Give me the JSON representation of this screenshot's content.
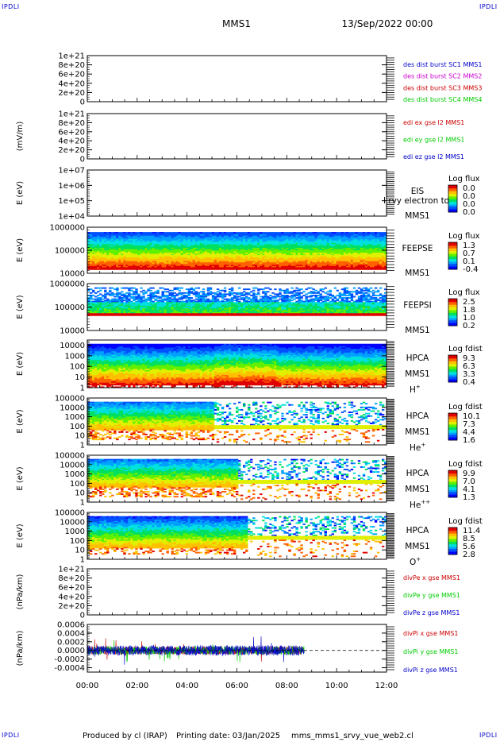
{
  "header": {
    "corner_label": "IPDLI",
    "spacecraft": "MMS1",
    "datetime": "13/Sep/2022 00:00"
  },
  "footer": {
    "produced_by": "Produced by cl (IRAP)",
    "printing_date": "Printing date: 03/Jan/2025",
    "filename": "mms_mms1_srvy_vue_web2.cl"
  },
  "colors": {
    "red": "#cc0000",
    "green": "#00cc00",
    "blue": "#0000cc",
    "magenta": "#cc00cc",
    "spectrum": [
      "#0000ff",
      "#0050ff",
      "#00a0ff",
      "#00e0e0",
      "#00e060",
      "#60f000",
      "#e0f000",
      "#ffc000",
      "#ff6000",
      "#e00000"
    ]
  },
  "chart_data": [
    {
      "type": "line",
      "id": "des-dist",
      "ylabel": "",
      "ytick_labels": [
        "0",
        "2e+20",
        "4e+20",
        "6e+20",
        "8e+20",
        "1e+21"
      ],
      "ylim": [
        0,
        1e+21
      ],
      "series": [
        {
          "name": "des dist burst SC1 MMS1",
          "color": "#0000cc",
          "values": []
        },
        {
          "name": "des dist burst SC2 MMS2",
          "color": "#cc00cc",
          "values": []
        },
        {
          "name": "des dist burst SC3 MMS3",
          "color": "#cc0000",
          "values": []
        },
        {
          "name": "des dist burst SC4 MMS4",
          "color": "#00cc00",
          "values": []
        }
      ],
      "zero_line": true
    },
    {
      "type": "line",
      "id": "edi",
      "ylabel": "(mV/m)",
      "ytick_labels": [
        "0",
        "2e+20",
        "4e+20",
        "6e+20",
        "8e+20",
        "1e+21"
      ],
      "ylim": [
        0,
        1e+21
      ],
      "series": [
        {
          "name": "edi ex gse l2 MMS1",
          "color": "#cc0000",
          "values": []
        },
        {
          "name": "edi ey gse l2 MMS1",
          "color": "#00cc00",
          "values": []
        },
        {
          "name": "edi ez gse l2 MMS1",
          "color": "#0000cc",
          "values": []
        }
      ],
      "zero_line": true
    },
    {
      "type": "heatmap",
      "id": "eis",
      "ylabel": "E (eV)",
      "scale": "log",
      "ytick_labels": [
        "1e+04",
        "1e+05",
        "1e+06",
        "1e+07"
      ],
      "ylim": [
        10000,
        10000000
      ],
      "instrument": "EIS",
      "spacecraft": "MMS1",
      "overlay_text": "l rvy electron to",
      "colorbar": {
        "title": "Log flux",
        "ticks": [
          "0.0",
          "0.0",
          "0.0",
          "0.0"
        ]
      },
      "fill": "empty"
    },
    {
      "type": "heatmap",
      "id": "feepse",
      "ylabel": "E (eV)",
      "scale": "log",
      "ytick_labels": [
        "10000",
        "100000",
        "1000000"
      ],
      "ylim": [
        10000,
        1000000
      ],
      "instrument": "FEEPSE",
      "spacecraft": "MMS1",
      "colorbar": {
        "title": "Log flux",
        "ticks": [
          "1.3",
          "0.7",
          "0.1",
          "-0.4"
        ]
      },
      "fill": "feepse"
    },
    {
      "type": "heatmap",
      "id": "feepsi",
      "ylabel": "E (eV)",
      "scale": "log",
      "ytick_labels": [
        "10000",
        "100000",
        "1000000"
      ],
      "ylim": [
        10000,
        1000000
      ],
      "instrument": "FEEPSI",
      "spacecraft": "MMS1",
      "colorbar": {
        "title": "Log flux",
        "ticks": [
          "2.5",
          "1.8",
          "1.0",
          "0.2"
        ]
      },
      "fill": "feepsi"
    },
    {
      "type": "heatmap",
      "id": "hpca-h",
      "ylabel": "E (eV)",
      "scale": "log",
      "ytick_labels": [
        "1",
        "10",
        "100",
        "1000",
        "10000"
      ],
      "ylim": [
        1,
        30000
      ],
      "instrument": "HPCA",
      "spacecraft": "MMS1",
      "species": "H",
      "charge": "+",
      "colorbar": {
        "title": "Log fdist",
        "ticks": [
          "9.3",
          "6.3",
          "3.3",
          "0.4"
        ]
      },
      "fill": "hplus"
    },
    {
      "type": "heatmap",
      "id": "hpca-he",
      "ylabel": "E (eV)",
      "scale": "log",
      "ytick_labels": [
        "1",
        "10",
        "100",
        "1000",
        "10000",
        "100000"
      ],
      "ylim": [
        1,
        100000
      ],
      "instrument": "HPCA",
      "spacecraft": "MMS1",
      "species": "He",
      "charge": "+",
      "colorbar": {
        "title": "Log fdist",
        "ticks": [
          "10.1",
          "7.3",
          "4.4",
          "1.6"
        ]
      },
      "fill": "heplus"
    },
    {
      "type": "heatmap",
      "id": "hpca-he2",
      "ylabel": "E (eV)",
      "scale": "log",
      "ytick_labels": [
        "1",
        "10",
        "100",
        "1000",
        "10000",
        "100000"
      ],
      "ylim": [
        1,
        100000
      ],
      "instrument": "HPCA",
      "spacecraft": "MMS1",
      "species": "He",
      "charge": "++",
      "colorbar": {
        "title": "Log fdist",
        "ticks": [
          "9.9",
          "7.0",
          "4.1",
          "1.3"
        ]
      },
      "fill": "heplusplus"
    },
    {
      "type": "heatmap",
      "id": "hpca-o",
      "ylabel": "E (eV)",
      "scale": "log",
      "ytick_labels": [
        "1",
        "10",
        "100",
        "1000",
        "10000",
        "100000"
      ],
      "ylim": [
        1,
        100000
      ],
      "instrument": "HPCA",
      "spacecraft": "MMS1",
      "species": "O",
      "charge": "+",
      "colorbar": {
        "title": "Log fdist",
        "ticks": [
          "11.4",
          "8.5",
          "5.6",
          "2.8"
        ]
      },
      "fill": "oplus"
    },
    {
      "type": "line",
      "id": "divpe",
      "ylabel": "(nPa/km)",
      "ytick_labels": [
        "0",
        "2e+20",
        "4e+20",
        "6e+20",
        "8e+20",
        "1e+21"
      ],
      "ylim": [
        0,
        1e+21
      ],
      "series": [
        {
          "name": "divPe x gse MMS1",
          "color": "#cc0000",
          "values": []
        },
        {
          "name": "divPe y gse MMS1",
          "color": "#00cc00",
          "values": []
        },
        {
          "name": "divPe z gse MMS1",
          "color": "#0000cc",
          "values": []
        }
      ],
      "zero_line": true
    },
    {
      "type": "line",
      "id": "divpi",
      "ylabel": "(nPa/km)",
      "ytick_labels": [
        "-0.0004",
        "-0.0002",
        "0.0000",
        "0.0002",
        "0.0004",
        "0.0006"
      ],
      "ylim": [
        -0.0005,
        0.0006
      ],
      "series": [
        {
          "name": "divPi x gse MMS1",
          "color": "#cc0000"
        },
        {
          "name": "divPi y gse MMS1",
          "color": "#00cc00"
        },
        {
          "name": "divPi z gse MMS1",
          "color": "#0000cc"
        }
      ],
      "data_end_hour": 8.7,
      "noise_amplitude": 0.00012,
      "zero_line": true
    }
  ],
  "xaxis": {
    "tick_labels": [
      "00:00",
      "02:00",
      "04:00",
      "06:00",
      "08:00",
      "10:00",
      "12:00"
    ],
    "range_hours": [
      0,
      12
    ]
  }
}
